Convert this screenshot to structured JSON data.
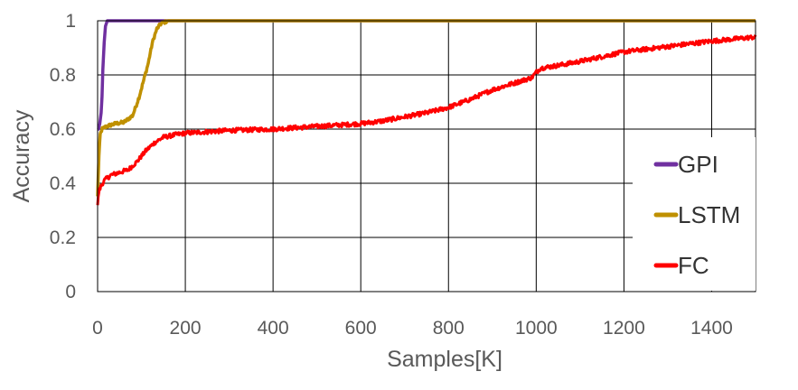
{
  "chart_data": {
    "type": "line",
    "title": "",
    "xlabel": "Samples[K]",
    "ylabel": "Accuracy",
    "xlim": [
      0,
      1500
    ],
    "ylim": [
      0,
      1
    ],
    "xticks": [
      0,
      200,
      400,
      600,
      800,
      1000,
      1200,
      1400
    ],
    "yticks": [
      0,
      0.2,
      0.4,
      0.6,
      0.8,
      1
    ],
    "ytick_labels": [
      "0",
      "0.2",
      "0.4",
      "0.6",
      "0.8",
      "1"
    ],
    "grid": true,
    "legend_position": "right",
    "series": [
      {
        "name": "GPI",
        "color": "#7030a0",
        "x": [
          0,
          2,
          5,
          8,
          10,
          12,
          15,
          18,
          22,
          30,
          1500
        ],
        "y": [
          0.6,
          0.6,
          0.62,
          0.66,
          0.72,
          0.82,
          0.92,
          0.98,
          1.0,
          1.0,
          1.0
        ]
      },
      {
        "name": "LSTM",
        "color": "#bf9000",
        "x": [
          0,
          3,
          6,
          10,
          20,
          40,
          60,
          80,
          95,
          105,
          115,
          125,
          135,
          145,
          160,
          1500
        ],
        "y": [
          0.35,
          0.5,
          0.58,
          0.6,
          0.61,
          0.62,
          0.625,
          0.65,
          0.72,
          0.78,
          0.84,
          0.92,
          0.97,
          0.99,
          1.0,
          1.0
        ],
        "noise": 0.006
      },
      {
        "name": "FC",
        "color": "#ff0000",
        "x": [
          0,
          3,
          8,
          15,
          30,
          50,
          70,
          90,
          110,
          130,
          150,
          180,
          200,
          250,
          300,
          400,
          500,
          600,
          650,
          700,
          750,
          800,
          850,
          900,
          950,
          990,
          1000,
          1010,
          1050,
          1100,
          1200,
          1300,
          1400,
          1500
        ],
        "y": [
          0.32,
          0.37,
          0.39,
          0.41,
          0.43,
          0.44,
          0.45,
          0.48,
          0.52,
          0.55,
          0.57,
          0.58,
          0.585,
          0.59,
          0.595,
          0.6,
          0.61,
          0.62,
          0.63,
          0.645,
          0.66,
          0.68,
          0.71,
          0.745,
          0.77,
          0.79,
          0.81,
          0.825,
          0.835,
          0.85,
          0.885,
          0.905,
          0.925,
          0.94
        ],
        "noise": 0.008
      }
    ]
  }
}
